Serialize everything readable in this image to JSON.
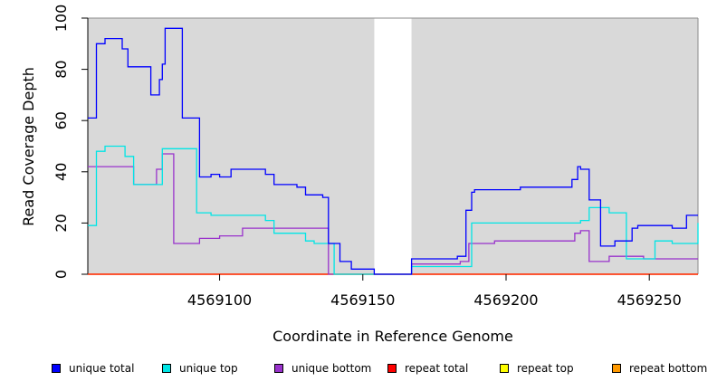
{
  "chart_data": {
    "type": "line",
    "xlabel": "Coordinate in Reference Genome",
    "ylabel": "Read Coverage Depth",
    "xlim": [
      4569054,
      4569267
    ],
    "ylim": [
      0,
      100
    ],
    "yticks": [
      0,
      20,
      40,
      60,
      80,
      100
    ],
    "xticks": [
      4569100,
      4569150,
      4569200,
      4569250
    ],
    "shaded_ranges": [
      [
        4569054,
        4569154
      ],
      [
        4569167,
        4569267
      ]
    ],
    "colors": {
      "background": "#d9d9d9",
      "unique_total": "#0000ff",
      "unique_top": "#00e5e5",
      "unique_bottom": "#9932cc",
      "repeat_total": "#ff0000",
      "repeat_top": "#ffff00",
      "repeat_bottom": "#ff9900"
    },
    "series": [
      {
        "name": "unique total",
        "color": "#0000ff",
        "x": [
          4569054,
          4569057,
          4569060,
          4569064,
          4569066,
          4569068,
          4569076,
          4569079,
          4569080,
          4569081,
          4569087,
          4569090,
          4569093,
          4569097,
          4569100,
          4569104,
          4569114,
          4569116,
          4569119,
          4569127,
          4569130,
          4569136,
          4569138,
          4569142,
          4569146,
          4569152,
          4569154,
          4569167,
          4569180,
          4569183,
          4569186,
          4569188,
          4569189,
          4569191,
          4569205,
          4569219,
          4569223,
          4569225,
          4569226,
          4569229,
          4569233,
          4569238,
          4569244,
          4569246,
          4569251,
          4569258,
          4569263,
          4569267
        ],
        "y": [
          61,
          90,
          92,
          92,
          88,
          81,
          70,
          76,
          82,
          96,
          61,
          61,
          38,
          39,
          38,
          41,
          41,
          39,
          35,
          34,
          31,
          30,
          12,
          5,
          2,
          2,
          0,
          6,
          6,
          7,
          25,
          32,
          33,
          33,
          34,
          34,
          37,
          42,
          41,
          29,
          11,
          13,
          18,
          19,
          19,
          18,
          23,
          23
        ]
      },
      {
        "name": "unique top",
        "color": "#00e5e5",
        "x": [
          4569054,
          4569057,
          4569060,
          4569067,
          4569070,
          4569079,
          4569080,
          4569091,
          4569092,
          4569097,
          4569114,
          4569116,
          4569119,
          4569125,
          4569130,
          4569133,
          4569140,
          4569154,
          4569167,
          4569186,
          4569188,
          4569205,
          4569226,
          4569229,
          4569236,
          4569242,
          4569244,
          4569252,
          4569258,
          4569267
        ],
        "y": [
          19,
          48,
          50,
          46,
          35,
          35,
          49,
          49,
          24,
          23,
          23,
          21,
          16,
          16,
          13,
          12,
          0,
          0,
          3,
          3,
          20,
          20,
          21,
          26,
          24,
          6,
          6,
          13,
          12,
          20
        ]
      },
      {
        "name": "unique bottom",
        "color": "#9932cc",
        "x": [
          4569054,
          4569057,
          4569060,
          4569070,
          4569076,
          4569078,
          4569080,
          4569084,
          4569090,
          4569093,
          4569100,
          4569108,
          4569118,
          4569136,
          4569138,
          4569154,
          4569167,
          4569180,
          4569184,
          4569187,
          4569196,
          4569205,
          4569218,
          4569224,
          4569226,
          4569229,
          4569236,
          4569248,
          4569267
        ],
        "y": [
          42,
          42,
          42,
          35,
          35,
          41,
          47,
          12,
          12,
          14,
          15,
          18,
          18,
          18,
          0,
          0,
          4,
          4,
          5,
          12,
          13,
          13,
          13,
          16,
          17,
          5,
          7,
          6,
          6
        ]
      },
      {
        "name": "repeat total",
        "color": "#ff0000",
        "x": [
          4569054,
          4569267
        ],
        "y": [
          0,
          0
        ]
      },
      {
        "name": "repeat top",
        "color": "#ffff00",
        "x": [
          4569054,
          4569267
        ],
        "y": [
          0,
          0
        ]
      },
      {
        "name": "repeat bottom",
        "color": "#ff9900",
        "x": [
          4569054,
          4569267
        ],
        "y": [
          0,
          0
        ]
      }
    ],
    "legend": {
      "position": "bottom",
      "entries": [
        "unique total",
        "unique top",
        "unique bottom",
        "repeat total",
        "repeat top",
        "repeat bottom"
      ]
    }
  }
}
